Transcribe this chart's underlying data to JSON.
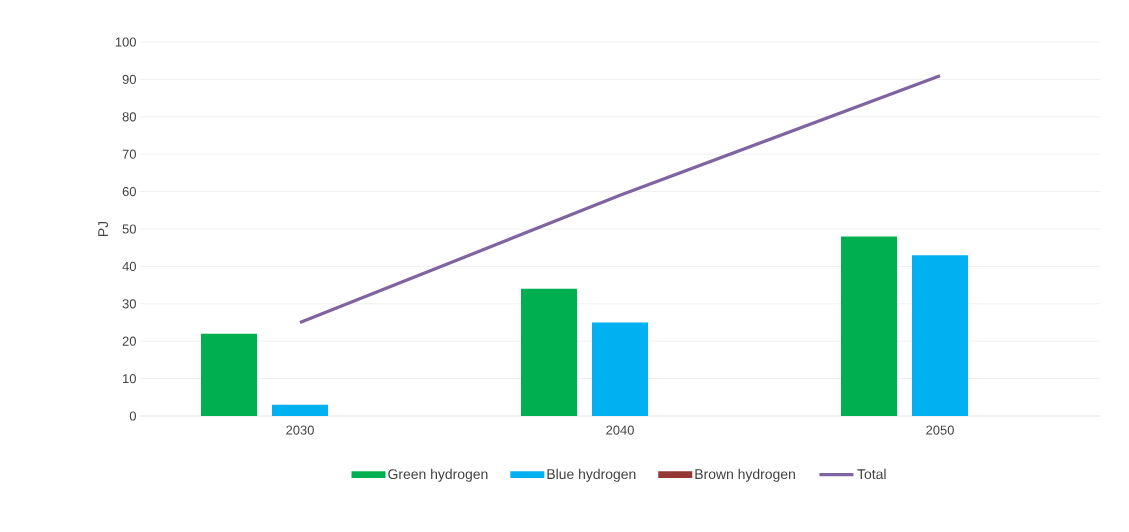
{
  "chart_data": {
    "type": "bar",
    "ylabel": "PJ",
    "categories": [
      "2030",
      "2040",
      "2050"
    ],
    "series": [
      {
        "name": "Green hydrogen",
        "color": "#00b050",
        "values": [
          22,
          34,
          48
        ]
      },
      {
        "name": "Blue hydrogen",
        "color": "#00b0f0",
        "values": [
          3,
          25,
          43
        ]
      },
      {
        "name": "Brown hydrogen",
        "color": "#953735",
        "values": [
          0,
          0,
          0
        ]
      },
      {
        "name": "Total",
        "type": "line",
        "color": "#8064a2",
        "values": [
          25,
          59,
          91
        ]
      }
    ],
    "ylim": [
      0,
      100
    ],
    "yticks": [
      0,
      10,
      20,
      30,
      40,
      50,
      60,
      70,
      80,
      90,
      100
    ],
    "grid": "y",
    "legend": "bottom"
  }
}
